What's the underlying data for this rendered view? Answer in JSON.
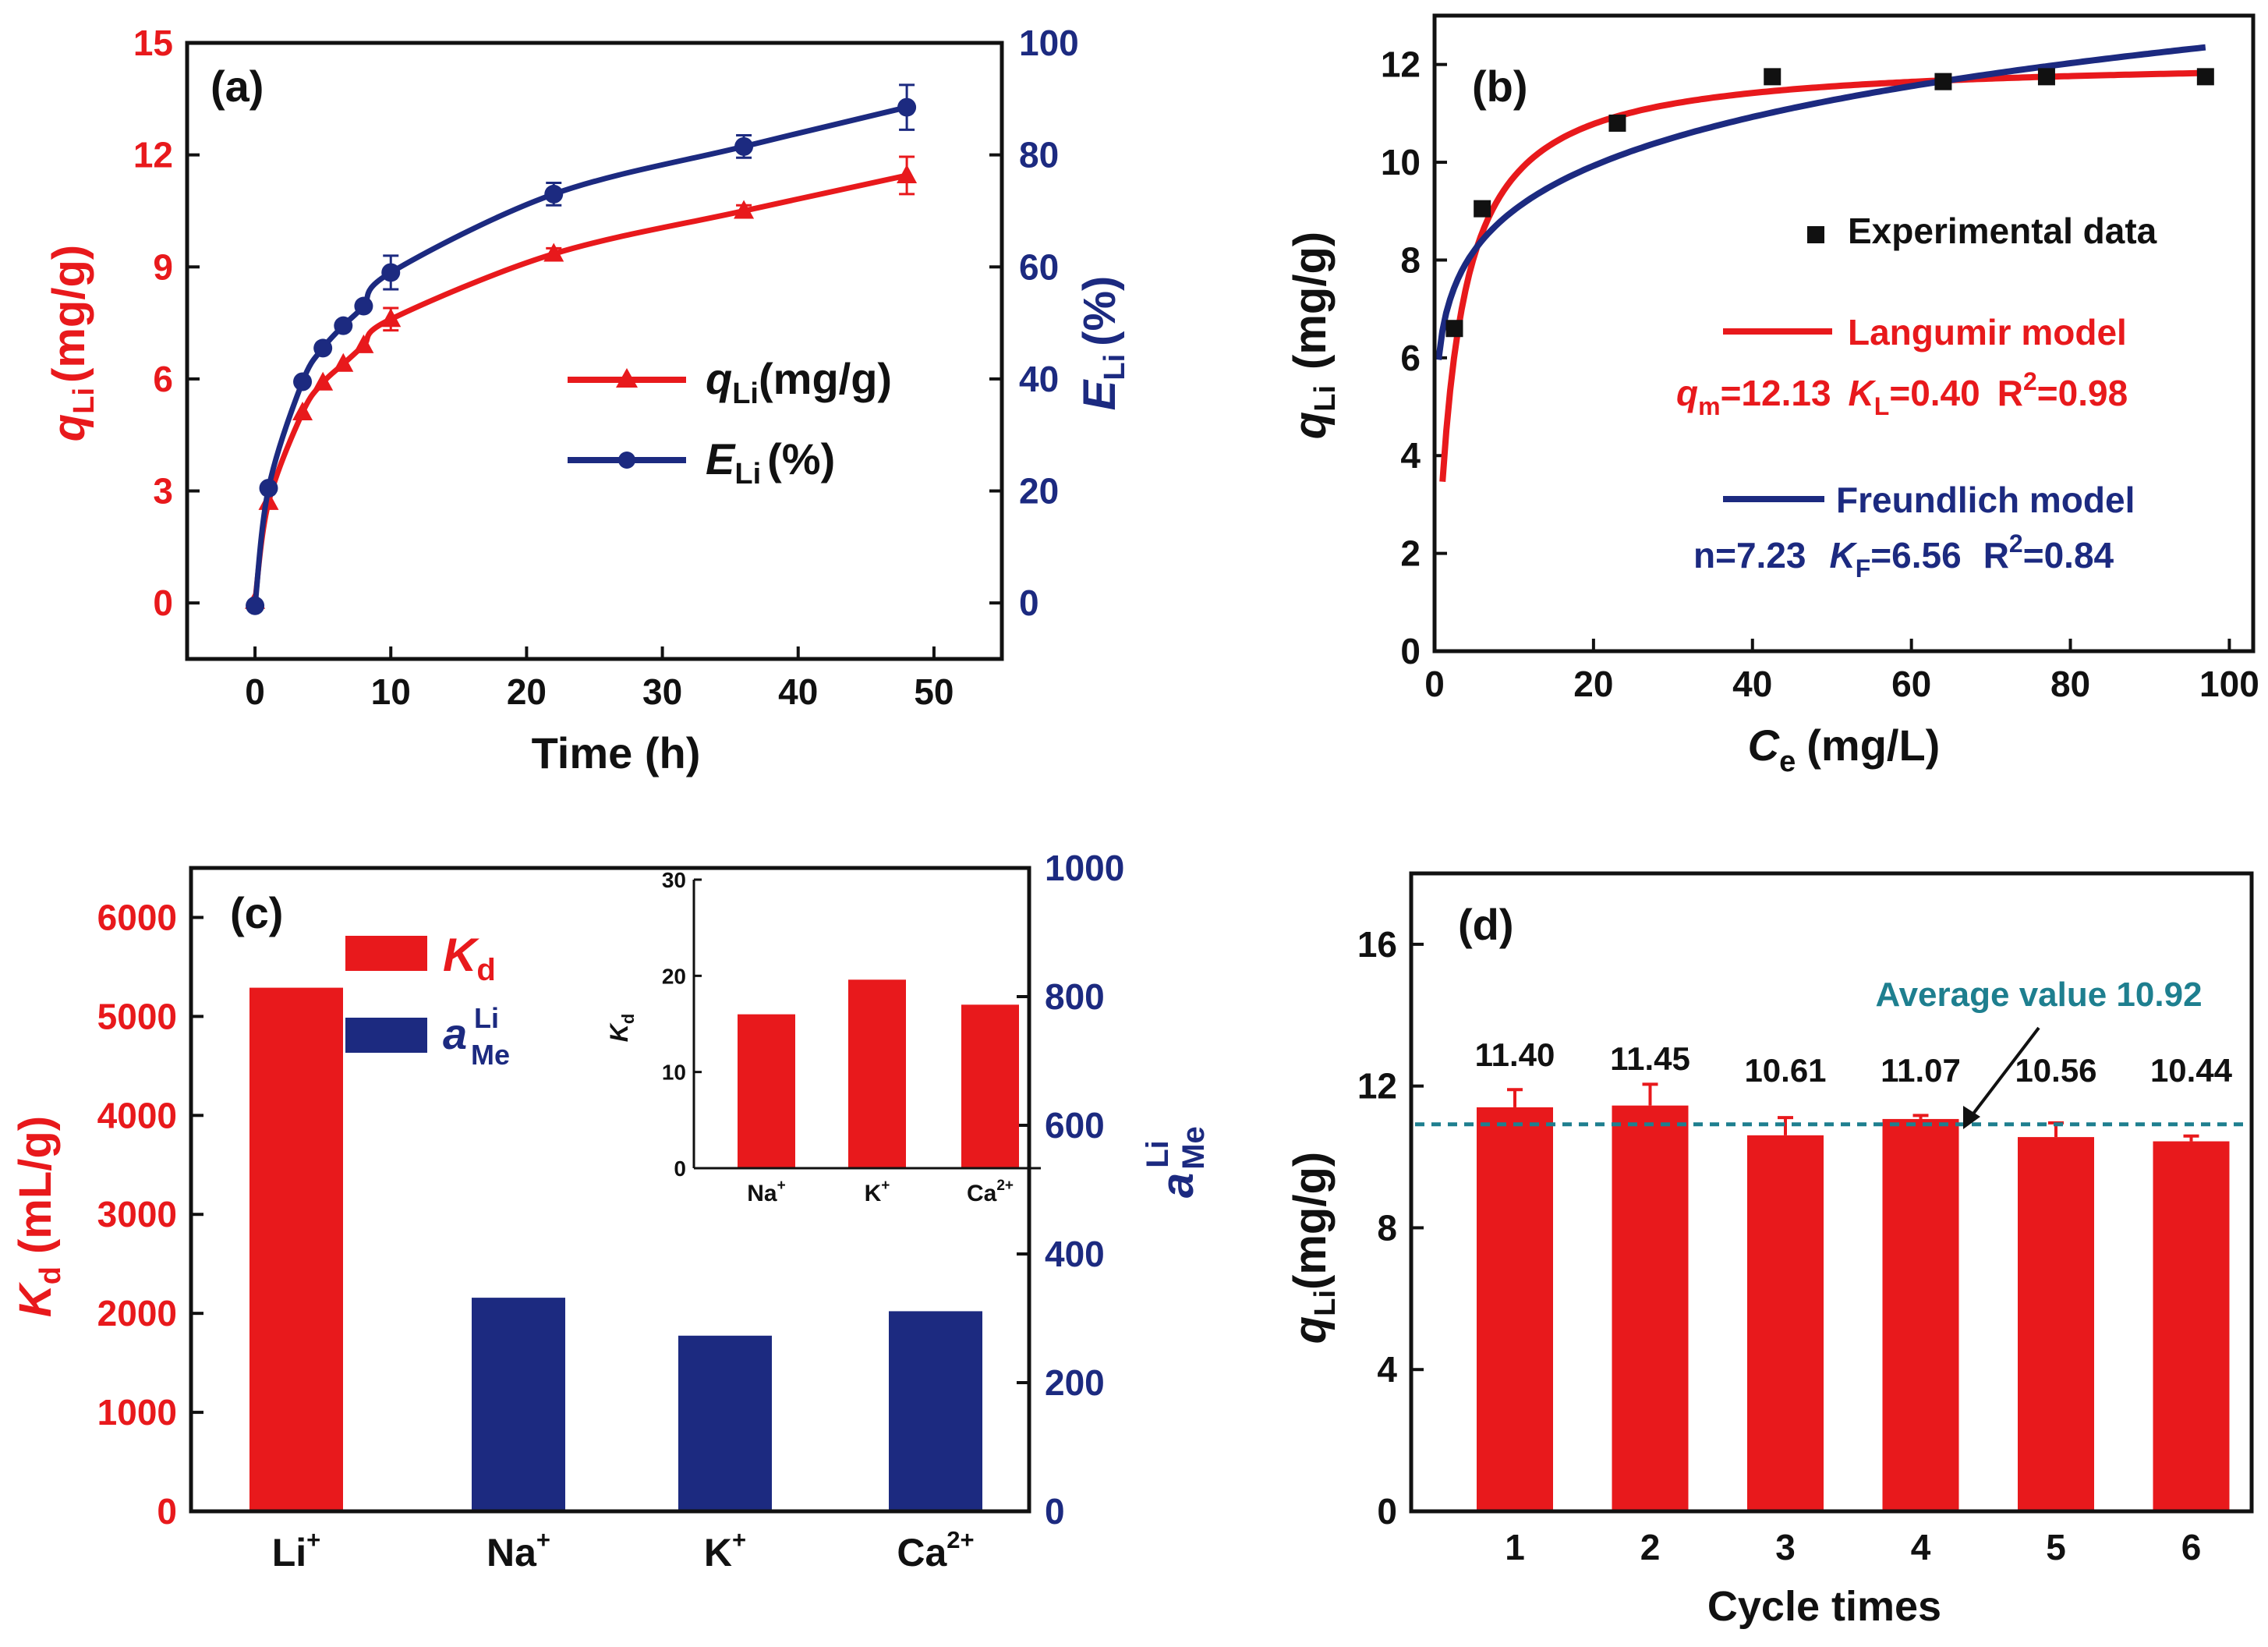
{
  "colors": {
    "red": "#e8191c",
    "navy": "#1c2a80",
    "teal": "#1e7f8f",
    "black": "#111111"
  },
  "panels": {
    "a": {
      "label": "(a)",
      "xlabel": "Time (h)",
      "ylabel_left": {
        "main": "q",
        "sub": "Li",
        "unit": "(mg/g)"
      },
      "ylabel_right": {
        "main": "E",
        "sub": "Li",
        "unit": "(%)"
      },
      "legend": [
        {
          "main": "q",
          "sub": "Li",
          "unit": "(mg/g)"
        },
        {
          "main": "E",
          "sub": "Li",
          "unit": "(%)"
        }
      ]
    },
    "b": {
      "label": "(b)",
      "xlabel": {
        "main": "C",
        "sub": "e",
        "unit": "(mg/L)"
      },
      "ylabel": {
        "main": "q",
        "sub": "Li",
        "unit": "(mg/g)"
      },
      "legend_experimental": "Experimental data",
      "legend_langmuir": "Langumir model",
      "legend_freundlich": "Freundlich model",
      "langmuir_params": {
        "qm_main": "q",
        "qm_sub": "m",
        "qm_value": "=12.13",
        "kl_main": "K",
        "kl_sub": "L",
        "kl_value": "=0.40",
        "r2_label": "R",
        "r2_sup": "2",
        "r2_value": "=0.98"
      },
      "freundlich_params": {
        "n_text": "n=7.23",
        "kf_main": "K",
        "kf_sub": "F",
        "kf_value": "=6.56",
        "r2_label": "R",
        "r2_sup": "2",
        "r2_value": "=0.84"
      }
    },
    "c": {
      "label": "(c)",
      "ylabel_left": {
        "main": "K",
        "sub": "d",
        "unit": "(mL/g)"
      },
      "ylabel_right": {
        "main": "a",
        "sup": "Li",
        "sub": "Me"
      },
      "legend_kd": {
        "main": "K",
        "sub": "d"
      },
      "legend_a": {
        "main": "a",
        "sup": "Li",
        "sub": "Me"
      },
      "inset_ylabel": {
        "main": "K",
        "sub": "d"
      }
    },
    "d": {
      "label": "(d)",
      "xlabel": "Cycle times",
      "ylabel": {
        "main": "q",
        "sub": "Li",
        "unit": "(mg/g)"
      },
      "average_label": "Average value 10.92"
    }
  },
  "chart_data": [
    {
      "id": "a",
      "type": "line",
      "title": "(a)",
      "xlabel": "Time (h)",
      "ylabel": "qLi (mg/g)",
      "y2label": "ELi (%)",
      "xlim": [
        -5,
        55
      ],
      "ylim": [
        -1.5,
        15
      ],
      "y2lim": [
        -10,
        100
      ],
      "xticks": [
        0,
        10,
        20,
        30,
        40,
        50
      ],
      "yticks": [
        0,
        3,
        6,
        9,
        12,
        15
      ],
      "y2ticks": [
        0,
        20,
        40,
        60,
        80,
        100
      ],
      "series": [
        {
          "name": "qLi (mg/g)",
          "axis": "left",
          "marker": "triangle",
          "x": [
            0,
            1,
            3.5,
            5,
            6.5,
            8,
            10,
            22,
            36,
            48
          ],
          "y": [
            0.05,
            2.7,
            5.1,
            5.9,
            6.4,
            6.9,
            7.6,
            9.35,
            10.5,
            11.45
          ],
          "err": [
            0,
            0,
            0,
            0,
            0,
            0,
            0.3,
            0.15,
            0.15,
            0.5
          ]
        },
        {
          "name": "ELi (%)",
          "axis": "right",
          "marker": "circle",
          "x": [
            0,
            1,
            3.5,
            5,
            6.5,
            8,
            10,
            22,
            36,
            48
          ],
          "y": [
            -0.5,
            20.5,
            39.5,
            45.5,
            49.5,
            53,
            59,
            73,
            81.5,
            88.5
          ],
          "err": [
            0,
            0,
            0,
            0,
            0,
            0,
            3,
            2,
            2,
            4
          ]
        }
      ]
    },
    {
      "id": "b",
      "type": "scatter",
      "title": "(b)",
      "xlabel": "Ce (mg/L)",
      "ylabel": "qLi (mg/g)",
      "xlim": [
        0,
        103
      ],
      "ylim": [
        0,
        13
      ],
      "xticks": [
        0,
        20,
        40,
        60,
        80,
        100
      ],
      "yticks": [
        0,
        2,
        4,
        6,
        8,
        10,
        12
      ],
      "series": [
        {
          "name": "Experimental data",
          "marker": "square",
          "x": [
            2.5,
            6,
            23,
            42.5,
            64,
            77,
            97
          ],
          "y": [
            6.6,
            9.05,
            10.8,
            11.75,
            11.65,
            11.75,
            11.75
          ]
        },
        {
          "name": "Langumir model",
          "kind": "curve",
          "qm": 12.13,
          "KL": 0.4,
          "R2": 0.98,
          "x_range": [
            1,
            97
          ]
        },
        {
          "name": "Freundlich model",
          "kind": "curve",
          "n": 7.23,
          "KF": 6.56,
          "R2": 0.84,
          "x_range": [
            0.5,
            97
          ]
        }
      ]
    },
    {
      "id": "c",
      "type": "bar",
      "title": "(c)",
      "categories": [
        "Li+",
        "Na+",
        "K+",
        "Ca2+"
      ],
      "ylabel": "Kd (mL/g)",
      "y2label": "aLiMe",
      "ylim": [
        0,
        6500
      ],
      "y2lim": [
        0,
        1000
      ],
      "yticks": [
        0,
        1000,
        2000,
        3000,
        4000,
        5000,
        6000
      ],
      "y2ticks": [
        0,
        200,
        400,
        600,
        800,
        1000
      ],
      "series": [
        {
          "name": "Kd",
          "axis": "left",
          "values": [
            5290,
            null,
            null,
            null
          ]
        },
        {
          "name": "aLiMe",
          "axis": "right",
          "values": [
            null,
            332,
            273,
            311
          ]
        }
      ],
      "inset": {
        "type": "bar",
        "categories": [
          "Na+",
          "K+",
          "Ca2+"
        ],
        "ylabel": "Kd",
        "ylim": [
          0,
          30
        ],
        "yticks": [
          0,
          10,
          20,
          30
        ],
        "values": [
          16,
          19.6,
          17
        ]
      }
    },
    {
      "id": "d",
      "type": "bar",
      "title": "(d)",
      "xlabel": "Cycle times",
      "ylabel": "qLi (mg/g)",
      "categories": [
        "1",
        "2",
        "3",
        "4",
        "5",
        "6"
      ],
      "ylim": [
        0,
        18
      ],
      "yticks": [
        0,
        4,
        8,
        12,
        16
      ],
      "values": [
        11.4,
        11.45,
        10.61,
        11.07,
        10.56,
        10.44
      ],
      "labels": [
        "11.40",
        "11.45",
        "10.61",
        "11.07",
        "10.56",
        "10.44"
      ],
      "errors": [
        0.5,
        0.6,
        0.5,
        0.1,
        0.4,
        0.15
      ],
      "average": 10.92
    }
  ]
}
